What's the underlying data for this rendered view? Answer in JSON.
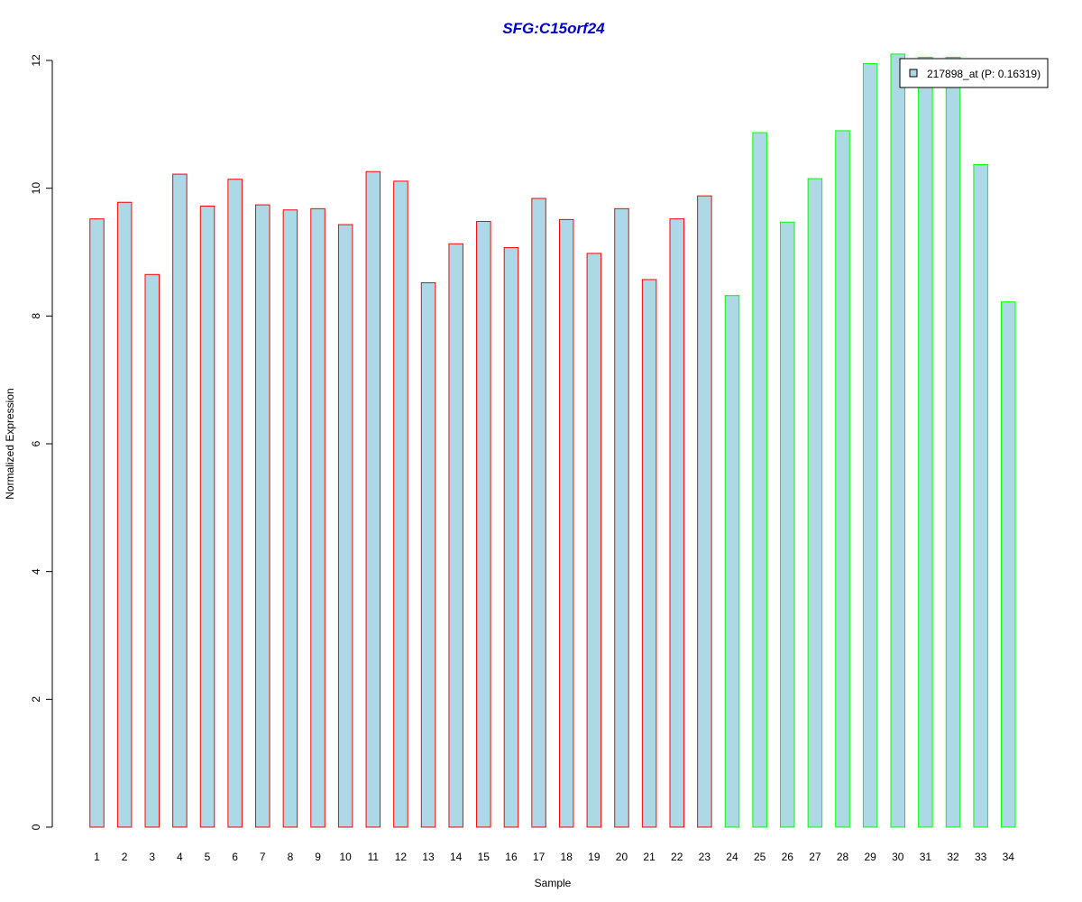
{
  "chart_data": {
    "type": "bar",
    "title": "SFG:C15orf24",
    "xlabel": "Sample",
    "ylabel": "Normalized Expression",
    "ylim": [
      0,
      12
    ],
    "yticks": [
      0,
      2,
      4,
      6,
      8,
      10,
      12
    ],
    "categories": [
      "1",
      "2",
      "3",
      "4",
      "5",
      "6",
      "7",
      "8",
      "9",
      "10",
      "11",
      "12",
      "13",
      "14",
      "15",
      "16",
      "17",
      "18",
      "19",
      "20",
      "21",
      "22",
      "23",
      "24",
      "25",
      "26",
      "27",
      "28",
      "29",
      "30",
      "31",
      "32",
      "33",
      "34"
    ],
    "series": [
      {
        "name": "217898_at (P: 0.16319)",
        "values": [
          9.52,
          9.78,
          8.65,
          10.22,
          9.72,
          10.14,
          9.74,
          9.66,
          9.68,
          9.43,
          10.26,
          10.11,
          8.52,
          9.13,
          9.48,
          9.07,
          9.84,
          9.51,
          8.98,
          9.68,
          8.57,
          9.52,
          9.88,
          8.32,
          10.87,
          9.47,
          10.15,
          10.9,
          11.95,
          12.1,
          12.05,
          12.05,
          10.37,
          8.22
        ]
      }
    ],
    "bar_fill": "#add8e6",
    "group_border_colors": {
      "samples_1_to_23": "#ff0000",
      "samples_24_to_34": "#00ff00"
    },
    "title_color": "#0000cc",
    "legend_placement": "top-right"
  }
}
